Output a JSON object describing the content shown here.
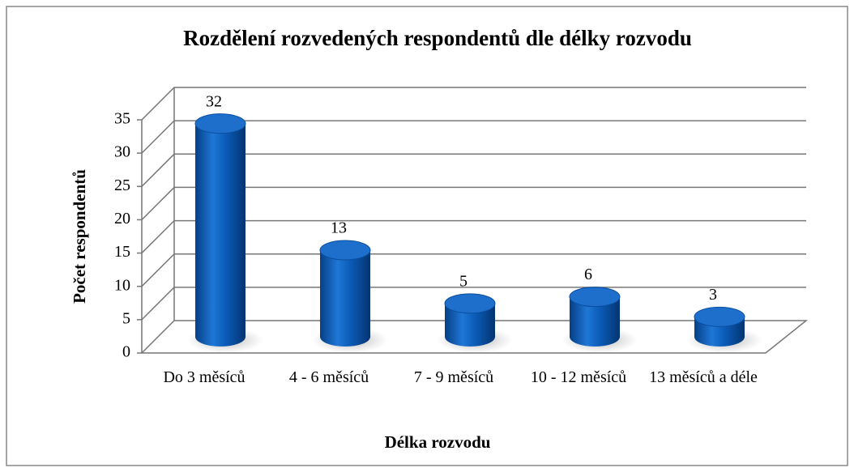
{
  "chart_data": {
    "type": "bar3d",
    "title": "Rozdělení rozvedených respondentů dle délky rozvodu",
    "x_label": "Délka rozvodu",
    "y_label": "Počet respondentů",
    "categories": [
      "Do 3 měsíců",
      "4 - 6 měsíců",
      "7 - 9 měsíců",
      "10 - 12 měsíců",
      "13 měsíců a déle"
    ],
    "values": [
      32,
      13,
      5,
      6,
      3
    ],
    "color": "#0a5bb5",
    "ylim": [
      0,
      35
    ],
    "yticks": [
      0,
      5,
      10,
      15,
      20,
      25,
      30,
      35
    ],
    "grid": true
  }
}
